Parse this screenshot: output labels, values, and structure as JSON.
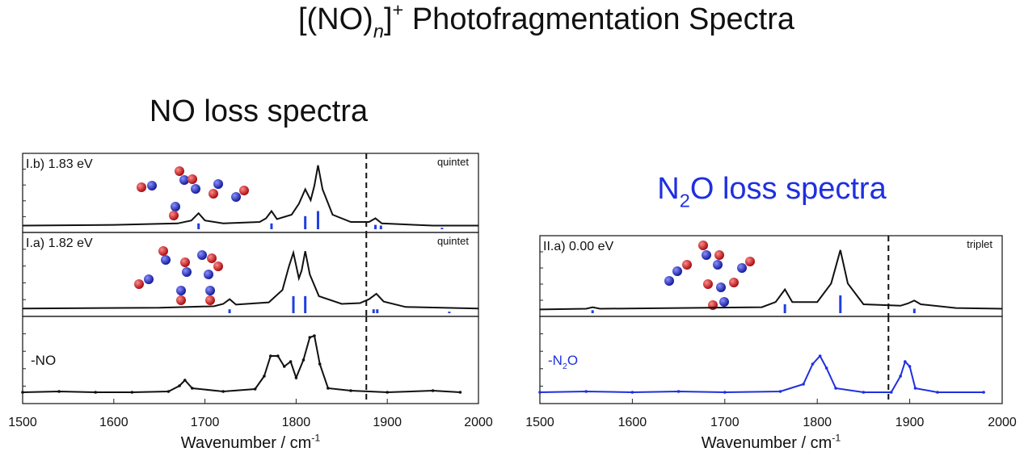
{
  "title": [
    {
      "text": "[(NO)"
    },
    {
      "text": "n",
      "sub": true,
      "italic": true
    },
    {
      "text": "]"
    },
    {
      "text": "+",
      "sup": true
    },
    {
      "text": " Photofragmentation Spectra"
    }
  ],
  "left_heading": [
    {
      "text": "NO loss spectra"
    }
  ],
  "right_heading": [
    {
      "text": "N"
    },
    {
      "text": "2",
      "sub": true
    },
    {
      "text": "O loss spectra"
    }
  ],
  "chart_data": [
    {
      "type": "line",
      "label": [
        {
          "text": "I.b) 1.83 eV"
        }
      ],
      "multiplicity": "quintet",
      "color": "#111111",
      "stick_color": "#1f3fe0",
      "x": [
        1500,
        1600,
        1670,
        1685,
        1693,
        1700,
        1720,
        1760,
        1767,
        1773,
        1779,
        1795,
        1803,
        1810,
        1816,
        1820,
        1824,
        1829,
        1840,
        1860,
        1880,
        1887,
        1894,
        1950,
        2000
      ],
      "values": [
        0.05,
        0.06,
        0.08,
        0.12,
        0.22,
        0.12,
        0.08,
        0.1,
        0.15,
        0.25,
        0.14,
        0.2,
        0.35,
        0.55,
        0.4,
        0.6,
        0.88,
        0.55,
        0.2,
        0.1,
        0.1,
        0.15,
        0.08,
        0.05,
        0.05
      ],
      "stick_x": [
        1693,
        1773,
        1810,
        1824,
        1887,
        1893,
        1960
      ],
      "stick_values": [
        0.08,
        0.08,
        0.18,
        0.25,
        0.06,
        0.05,
        0.02
      ],
      "xlim": [
        1500,
        2000
      ],
      "ylim": [
        0,
        1
      ],
      "vline": 1877
    },
    {
      "type": "line",
      "label": [
        {
          "text": "I.a) 1.82 eV"
        }
      ],
      "multiplicity": "quintet",
      "color": "#111111",
      "stick_color": "#1f3fe0",
      "x": [
        1500,
        1650,
        1710,
        1720,
        1727,
        1734,
        1770,
        1785,
        1792,
        1797,
        1803,
        1806,
        1810,
        1815,
        1825,
        1850,
        1870,
        1880,
        1888,
        1896,
        1920,
        2000
      ],
      "values": [
        0.06,
        0.07,
        0.09,
        0.12,
        0.18,
        0.11,
        0.14,
        0.3,
        0.6,
        0.78,
        0.45,
        0.55,
        0.8,
        0.5,
        0.22,
        0.12,
        0.13,
        0.18,
        0.25,
        0.15,
        0.08,
        0.06
      ],
      "stick_x": [
        1727,
        1797,
        1810,
        1885,
        1889,
        1968
      ],
      "stick_values": [
        0.05,
        0.22,
        0.22,
        0.05,
        0.05,
        0.02
      ],
      "xlim": [
        1500,
        2000
      ],
      "ylim": [
        0,
        1
      ],
      "vline": 1877
    },
    {
      "type": "line",
      "label": [
        {
          "text": "-NO"
        }
      ],
      "color": "#111111",
      "x": [
        1500,
        1540,
        1580,
        1620,
        1660,
        1672,
        1678,
        1686,
        1720,
        1755,
        1765,
        1772,
        1780,
        1787,
        1794,
        1800,
        1808,
        1815,
        1820,
        1826,
        1835,
        1860,
        1900,
        1950,
        1980
      ],
      "values": [
        0.1,
        0.11,
        0.1,
        0.1,
        0.11,
        0.18,
        0.25,
        0.15,
        0.11,
        0.14,
        0.3,
        0.55,
        0.55,
        0.42,
        0.48,
        0.28,
        0.5,
        0.78,
        0.8,
        0.45,
        0.15,
        0.12,
        0.1,
        0.12,
        0.1
      ],
      "xlim": [
        1500,
        2000
      ],
      "ylim": [
        0,
        1
      ],
      "vline": 1877,
      "xticks": [
        1500,
        1600,
        1700,
        1800,
        1900,
        2000
      ],
      "x_label": [
        {
          "text": "Wavenumber / cm"
        },
        {
          "text": "-1",
          "sup": true
        }
      ]
    },
    {
      "type": "line",
      "label": [
        {
          "text": "II.a) 0.00 eV"
        }
      ],
      "multiplicity": "triplet",
      "color": "#111111",
      "stick_color": "#1f3fe0",
      "x": [
        1500,
        1550,
        1557,
        1565,
        1740,
        1755,
        1765,
        1773,
        1800,
        1815,
        1825,
        1833,
        1850,
        1890,
        1898,
        1905,
        1912,
        1950,
        2000
      ],
      "values": [
        0.05,
        0.06,
        0.08,
        0.06,
        0.08,
        0.15,
        0.32,
        0.15,
        0.15,
        0.4,
        0.85,
        0.4,
        0.12,
        0.1,
        0.13,
        0.17,
        0.12,
        0.07,
        0.06
      ],
      "stick_x": [
        1557,
        1765,
        1825,
        1905
      ],
      "stick_values": [
        0.04,
        0.12,
        0.24,
        0.06
      ],
      "xlim": [
        1500,
        2000
      ],
      "ylim": [
        0,
        1
      ],
      "vline": 1877
    },
    {
      "type": "line",
      "label": [
        {
          "text": "-N"
        },
        {
          "text": "2",
          "sub": true
        },
        {
          "text": "O"
        }
      ],
      "color": "#1f2fe0",
      "x": [
        1500,
        1550,
        1600,
        1650,
        1700,
        1760,
        1785,
        1795,
        1803,
        1810,
        1820,
        1850,
        1880,
        1890,
        1895,
        1900,
        1906,
        1930,
        1980
      ],
      "values": [
        0.1,
        0.11,
        0.1,
        0.11,
        0.1,
        0.11,
        0.2,
        0.45,
        0.55,
        0.4,
        0.15,
        0.1,
        0.1,
        0.3,
        0.48,
        0.42,
        0.15,
        0.1,
        0.1
      ],
      "xlim": [
        1500,
        2000
      ],
      "ylim": [
        0,
        1
      ],
      "vline": 1877,
      "xticks": [
        1500,
        1600,
        1700,
        1800,
        1900,
        2000
      ],
      "x_label": [
        {
          "text": "Wavenumber / cm"
        },
        {
          "text": "-1",
          "sup": true
        }
      ]
    }
  ]
}
